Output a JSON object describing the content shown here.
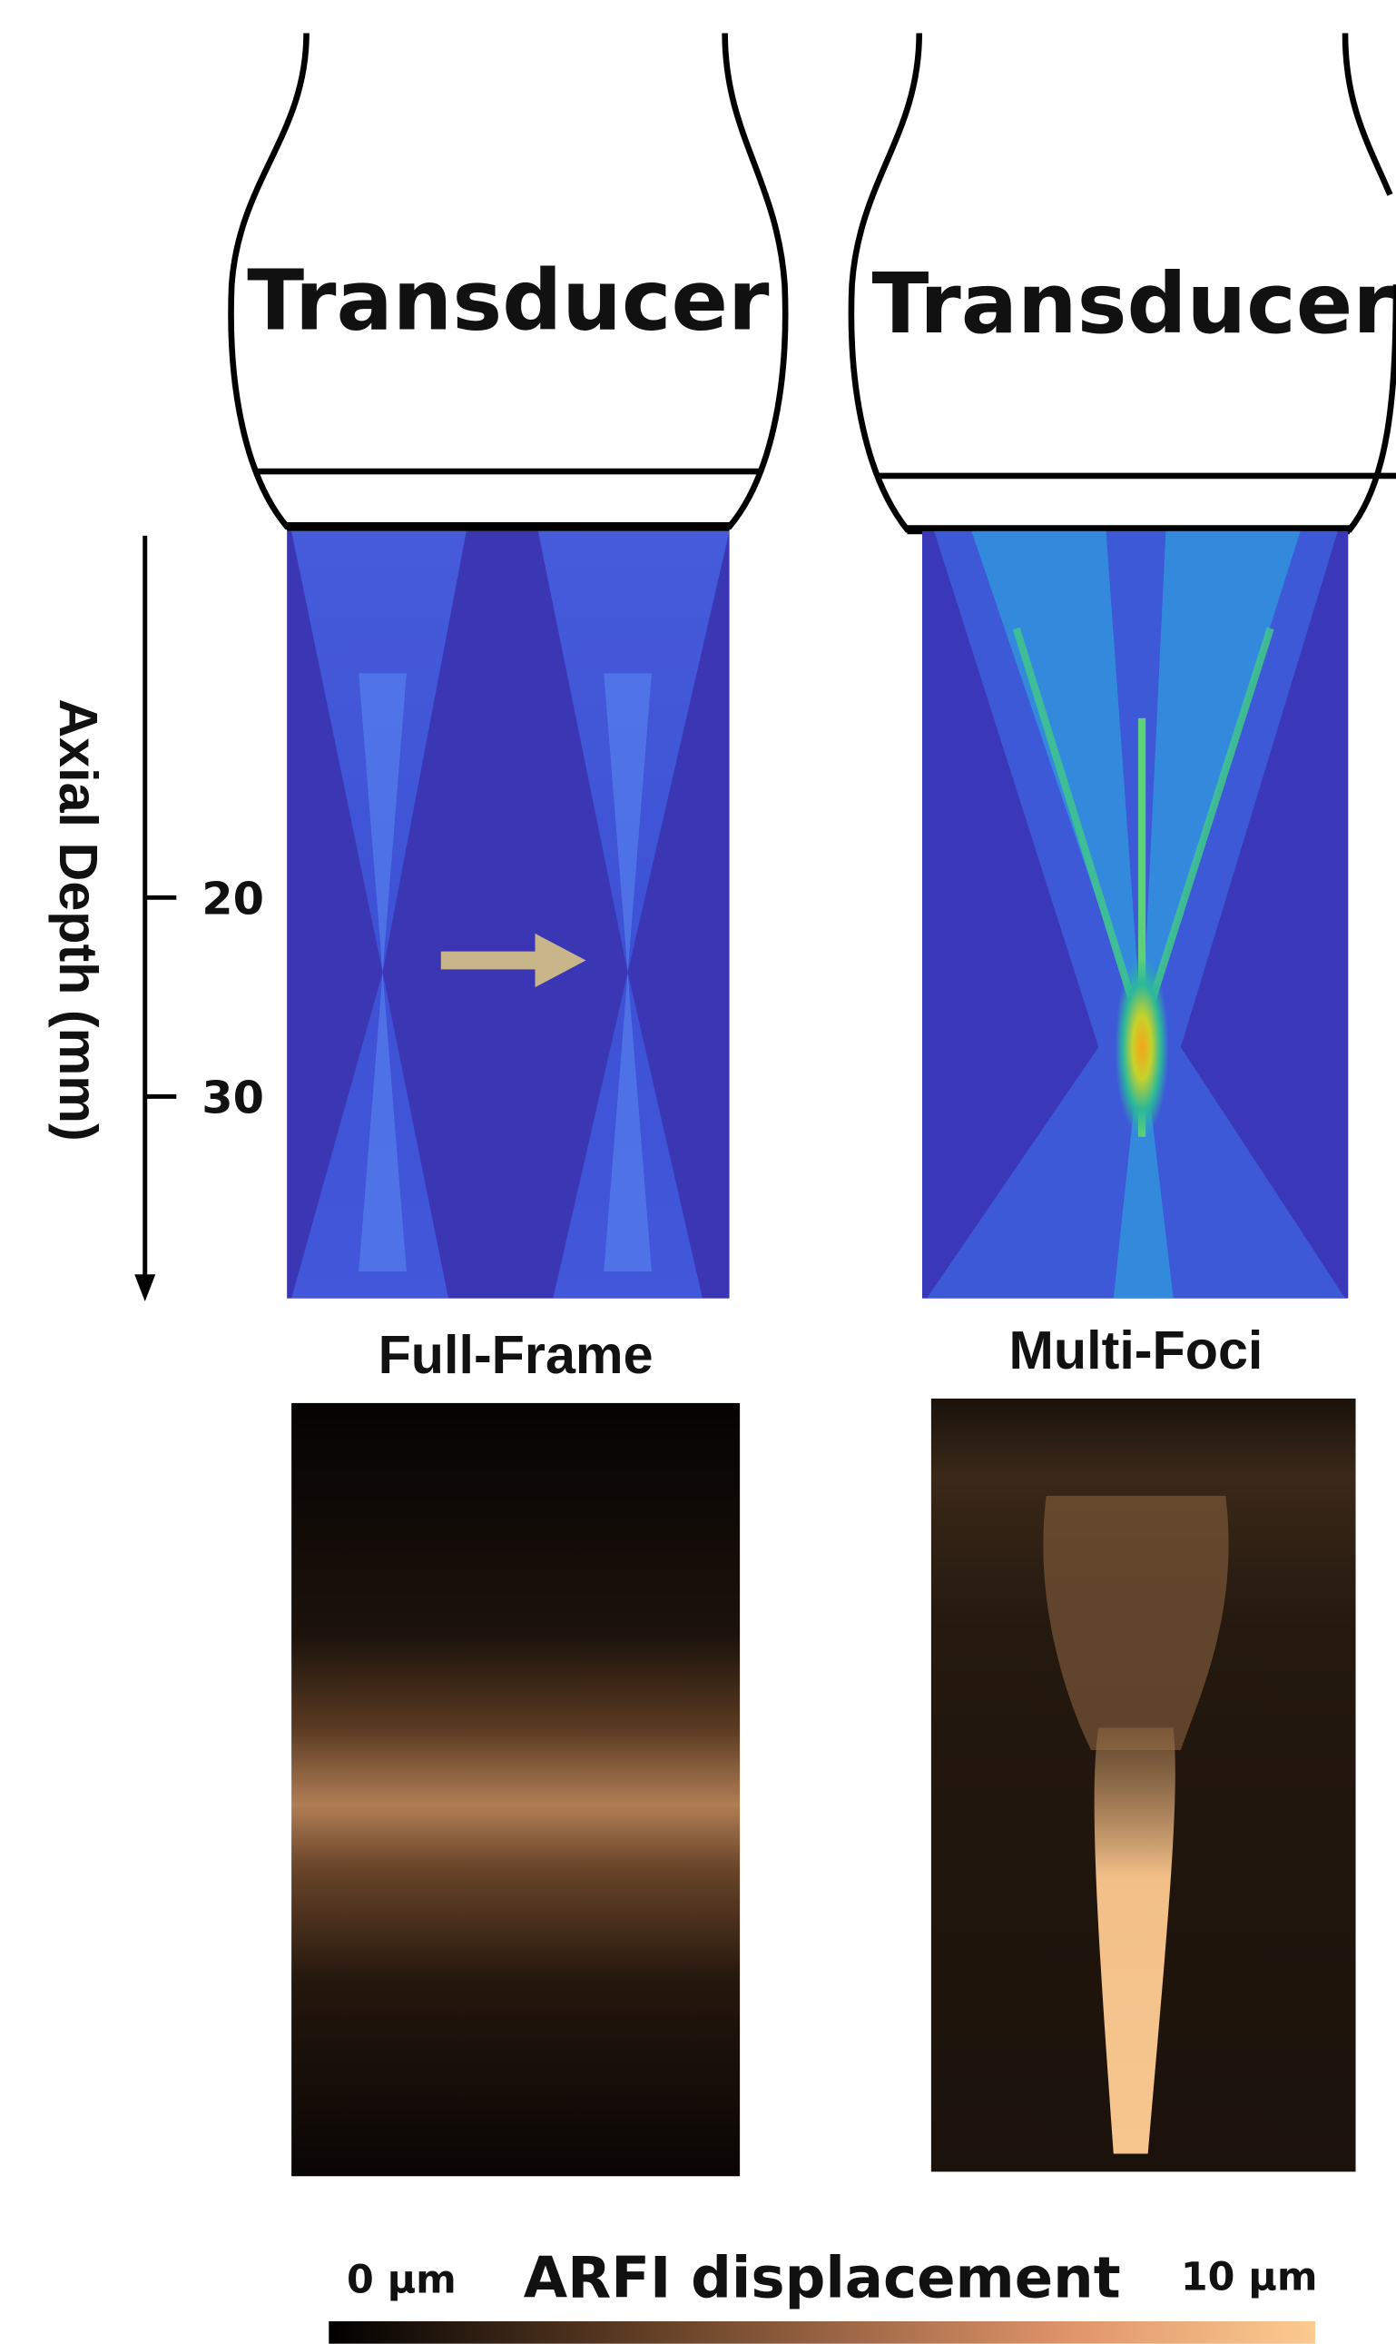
{
  "panels": [
    {
      "transducer": "Transducer",
      "label": "Full-Frame"
    },
    {
      "transducer": "Transducer",
      "label": "Multi-Foci"
    }
  ],
  "axis": {
    "label": "Axial Depth (mm)",
    "ticks": [
      20,
      30
    ]
  },
  "colorbar": {
    "min_label": "0 µm",
    "title": "ARFI displacement",
    "max_label": "10 µm"
  }
}
